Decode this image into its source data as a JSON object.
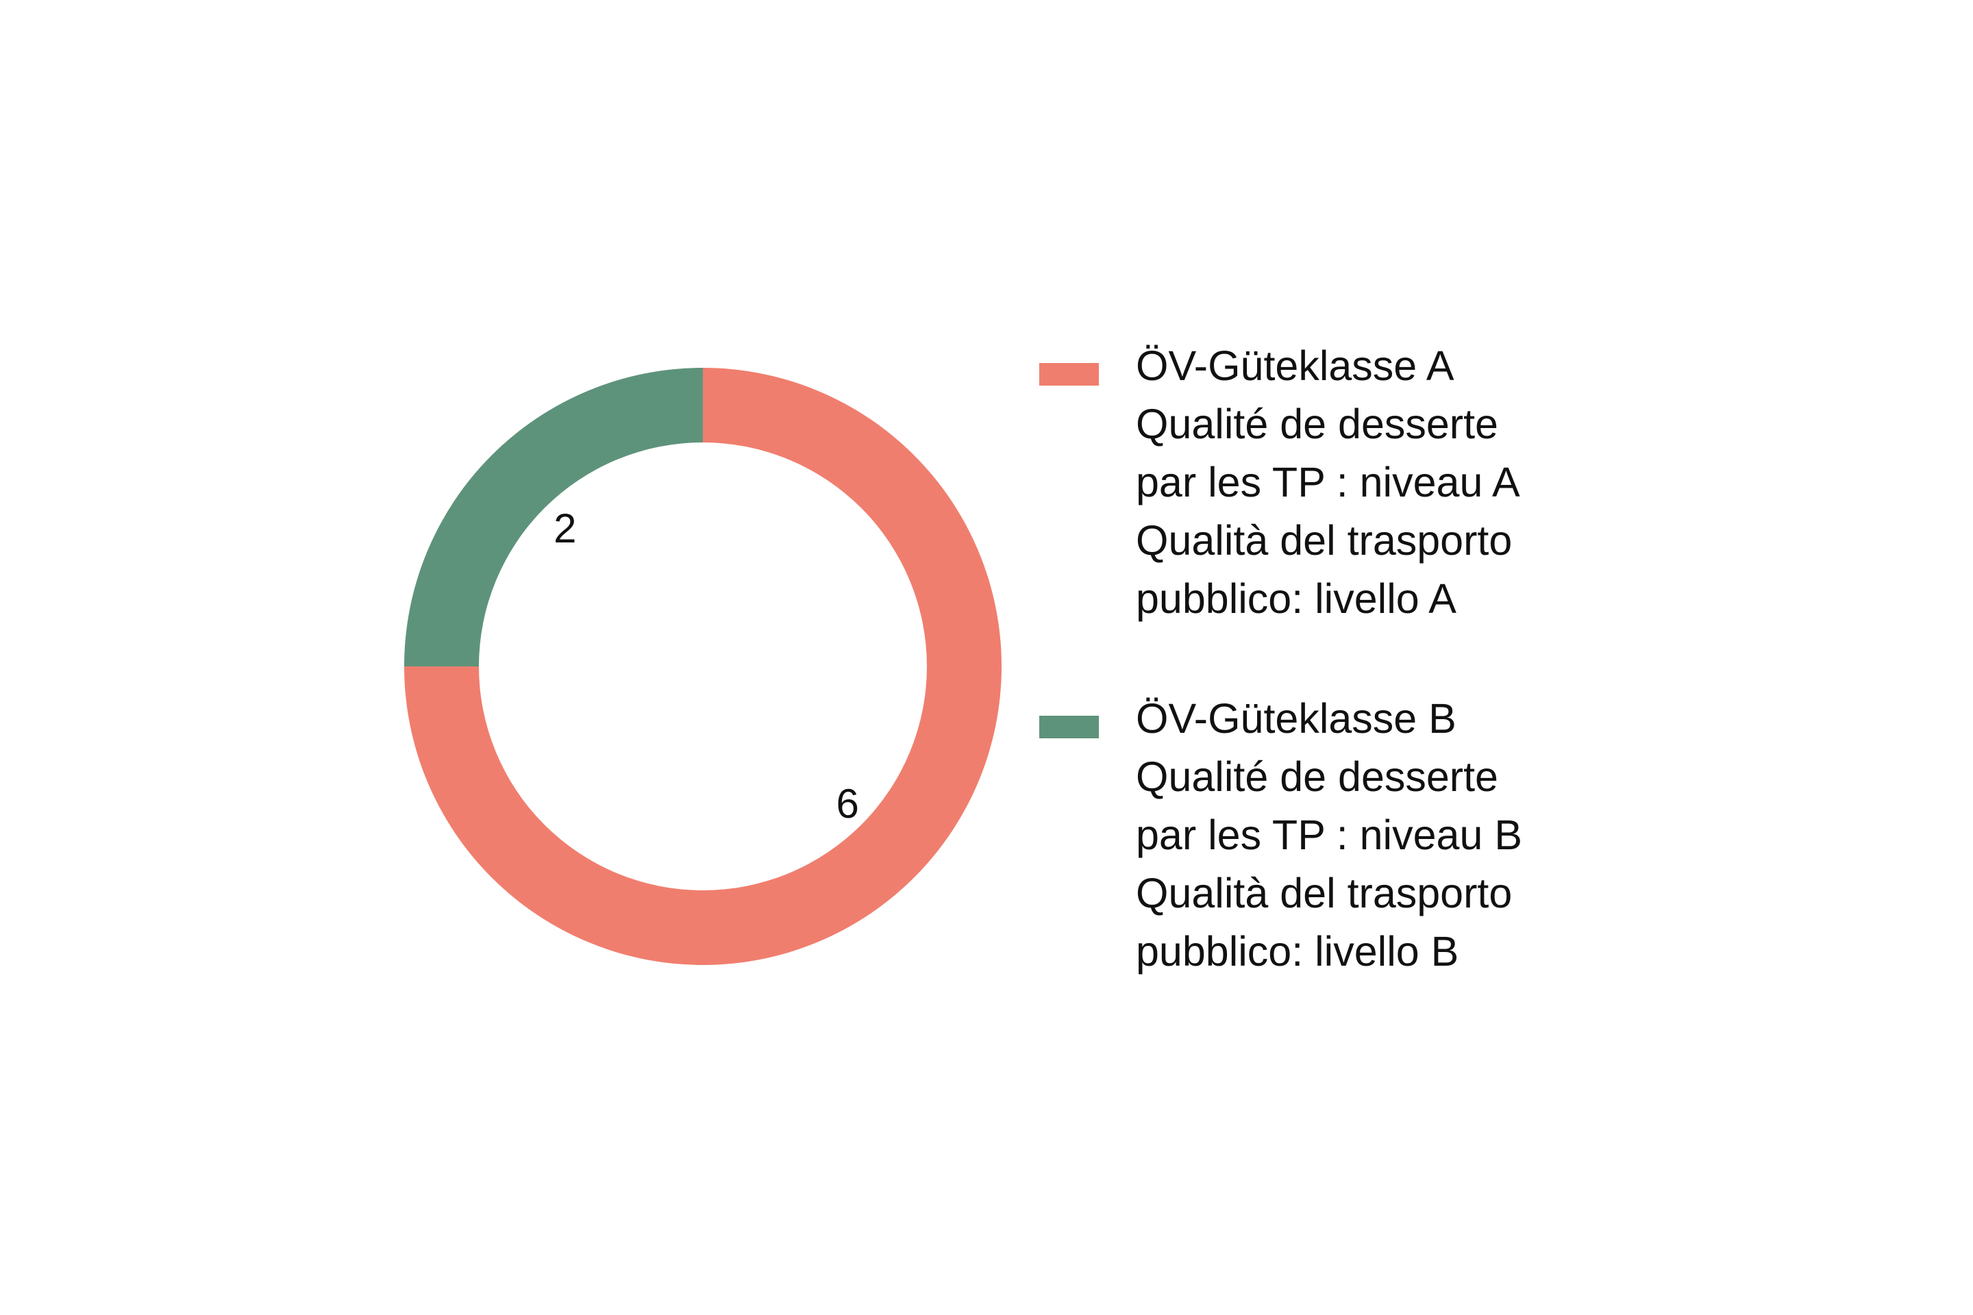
{
  "chart_data": {
    "type": "pie",
    "donut": true,
    "title": "",
    "start_angle": "top, clockwise",
    "series": [
      {
        "name": "ÖV-Güteklasse A\nQualité de desserte\npar les TP : niveau A\nQualità del trasporto\npubblico: livello A",
        "value": 6,
        "color": "#F07E6E",
        "legend_lines": [
          "ÖV-Güteklasse A",
          "Qualité de desserte",
          "par les TP : niveau A",
          "Qualità del trasporto",
          "pubblico: livello A"
        ]
      },
      {
        "name": "ÖV-Güteklasse B\nQualité de desserte\npar les TP : niveau B\nQualità del trasporto\npubblico: livello B",
        "value": 2,
        "color": "#5E937B",
        "legend_lines": [
          "ÖV-Güteklasse B",
          "Qualité de desserte",
          "par les TP : niveau B",
          "Qualità del trasporto",
          "pubblico: livello B"
        ]
      }
    ],
    "data_labels": [
      "6",
      "2"
    ],
    "legend_placement": "right"
  }
}
